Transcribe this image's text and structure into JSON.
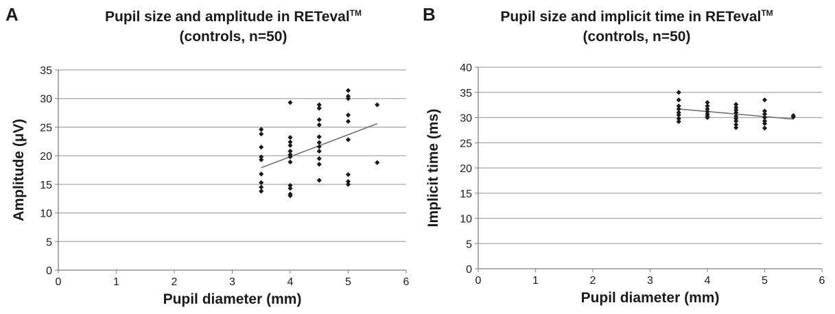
{
  "chart_data": [
    {
      "panel": "A",
      "type": "scatter",
      "title_line1": "Pupil size and amplitude in RETeval",
      "title_tm": "TM",
      "title_line2": "(controls, n=50)",
      "xlabel": "Pupil diameter (mm)",
      "ylabel": "Amplitude (μV)",
      "xlim": [
        0,
        6
      ],
      "ylim": [
        0,
        35
      ],
      "xticks": [
        0,
        1,
        2,
        3,
        4,
        5,
        6
      ],
      "yticks": [
        0,
        5,
        10,
        15,
        20,
        25,
        30,
        35
      ],
      "grid": "horizontal",
      "points": [
        [
          3.5,
          24.6
        ],
        [
          3.5,
          23.8
        ],
        [
          3.5,
          21.5
        ],
        [
          3.5,
          19.8
        ],
        [
          3.5,
          19.3
        ],
        [
          3.5,
          16.8
        ],
        [
          3.5,
          15.3
        ],
        [
          3.5,
          14.5
        ],
        [
          3.5,
          13.8
        ],
        [
          4.0,
          29.3
        ],
        [
          4.0,
          23.2
        ],
        [
          4.0,
          22.4
        ],
        [
          4.0,
          21.8
        ],
        [
          4.0,
          20.8
        ],
        [
          4.0,
          20.2
        ],
        [
          4.0,
          19.8
        ],
        [
          4.0,
          18.9
        ],
        [
          4.0,
          14.8
        ],
        [
          4.0,
          14.3
        ],
        [
          4.0,
          13.3
        ],
        [
          4.0,
          13.0
        ],
        [
          4.5,
          28.9
        ],
        [
          4.5,
          28.3
        ],
        [
          4.5,
          26.3
        ],
        [
          4.5,
          25.4
        ],
        [
          4.5,
          23.3
        ],
        [
          4.5,
          22.3
        ],
        [
          4.5,
          21.6
        ],
        [
          4.5,
          20.8
        ],
        [
          4.5,
          19.5
        ],
        [
          4.5,
          18.5
        ],
        [
          4.5,
          15.7
        ],
        [
          5.0,
          31.4
        ],
        [
          5.0,
          30.4
        ],
        [
          5.0,
          30.0
        ],
        [
          5.0,
          27.1
        ],
        [
          5.0,
          26.0
        ],
        [
          5.0,
          22.8
        ],
        [
          5.0,
          16.7
        ],
        [
          5.0,
          15.5
        ],
        [
          5.0,
          15.0
        ],
        [
          5.5,
          28.9
        ],
        [
          5.5,
          18.8
        ]
      ],
      "trendline": [
        [
          3.5,
          17.9
        ],
        [
          5.5,
          25.6
        ]
      ],
      "colors": {
        "marker": "#1a1a1a",
        "trendline": "#6e6e6e",
        "grid": "#a6a6a6",
        "axis": "#7f7f7f"
      }
    },
    {
      "panel": "B",
      "type": "scatter",
      "title_line1": "Pupil size and implicit time in RETeval",
      "title_tm": "TM",
      "title_line2": "(controls, n=50)",
      "xlabel": "Pupil diameter (mm)",
      "ylabel": "Implicit time (ms)",
      "xlim": [
        0,
        6
      ],
      "ylim": [
        0,
        40
      ],
      "xticks": [
        0,
        1,
        2,
        3,
        4,
        5,
        6
      ],
      "yticks": [
        0,
        5,
        10,
        15,
        20,
        25,
        30,
        35,
        40
      ],
      "grid": "horizontal",
      "points": [
        [
          3.5,
          35.0
        ],
        [
          3.5,
          33.5
        ],
        [
          3.5,
          32.3
        ],
        [
          3.5,
          31.7
        ],
        [
          3.5,
          31.0
        ],
        [
          3.5,
          30.5
        ],
        [
          3.5,
          29.8
        ],
        [
          3.5,
          29.2
        ],
        [
          4.0,
          33.0
        ],
        [
          4.0,
          32.3
        ],
        [
          4.0,
          31.7
        ],
        [
          4.0,
          31.2
        ],
        [
          4.0,
          30.7
        ],
        [
          4.0,
          30.3
        ],
        [
          4.0,
          30.0
        ],
        [
          4.5,
          32.6
        ],
        [
          4.5,
          32.0
        ],
        [
          4.5,
          31.5
        ],
        [
          4.5,
          31.0
        ],
        [
          4.5,
          30.3
        ],
        [
          4.5,
          29.8
        ],
        [
          4.5,
          29.3
        ],
        [
          4.5,
          28.6
        ],
        [
          4.5,
          28.0
        ],
        [
          5.0,
          33.5
        ],
        [
          5.0,
          31.3
        ],
        [
          5.0,
          30.7
        ],
        [
          5.0,
          30.0
        ],
        [
          5.0,
          29.3
        ],
        [
          5.0,
          28.8
        ],
        [
          5.0,
          27.9
        ],
        [
          5.5,
          30.4
        ],
        [
          5.5,
          30.1
        ]
      ],
      "trendline": [
        [
          3.5,
          31.7
        ],
        [
          5.5,
          29.7
        ]
      ],
      "colors": {
        "marker": "#1a1a1a",
        "trendline": "#6e6e6e",
        "grid": "#a6a6a6",
        "axis": "#7f7f7f"
      }
    }
  ],
  "panels": {
    "A": {
      "letter": "A"
    },
    "B": {
      "letter": "B"
    }
  }
}
